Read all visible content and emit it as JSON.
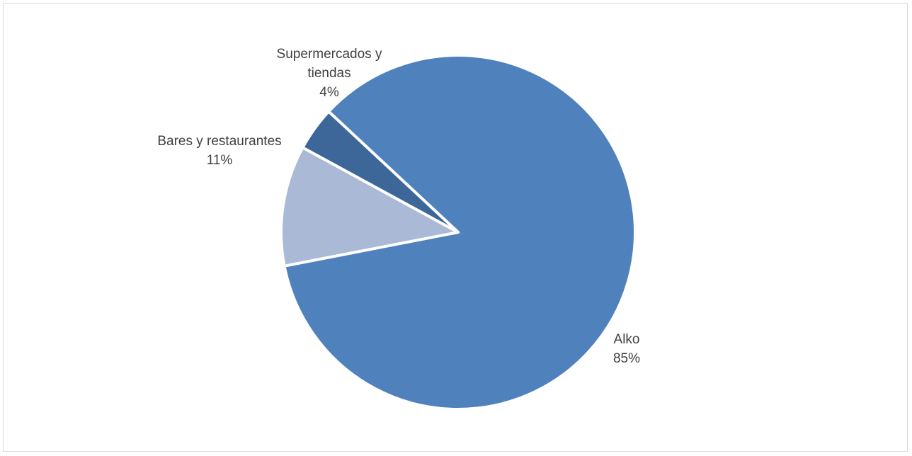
{
  "chart_data": {
    "type": "pie",
    "title": "",
    "slices": [
      {
        "label_lines": [
          "Alko"
        ],
        "value": 85,
        "value_label": "85%",
        "color": "#4f81bd"
      },
      {
        "label_lines": [
          "Bares y restaurantes"
        ],
        "value": 11,
        "value_label": "11%",
        "color": "#aab9d6"
      },
      {
        "label_lines": [
          "Supermercados y",
          "tiendas"
        ],
        "value": 4,
        "value_label": "4%",
        "color": "#3d6699"
      }
    ],
    "legend": "none",
    "labels": "outside-with-percent"
  }
}
